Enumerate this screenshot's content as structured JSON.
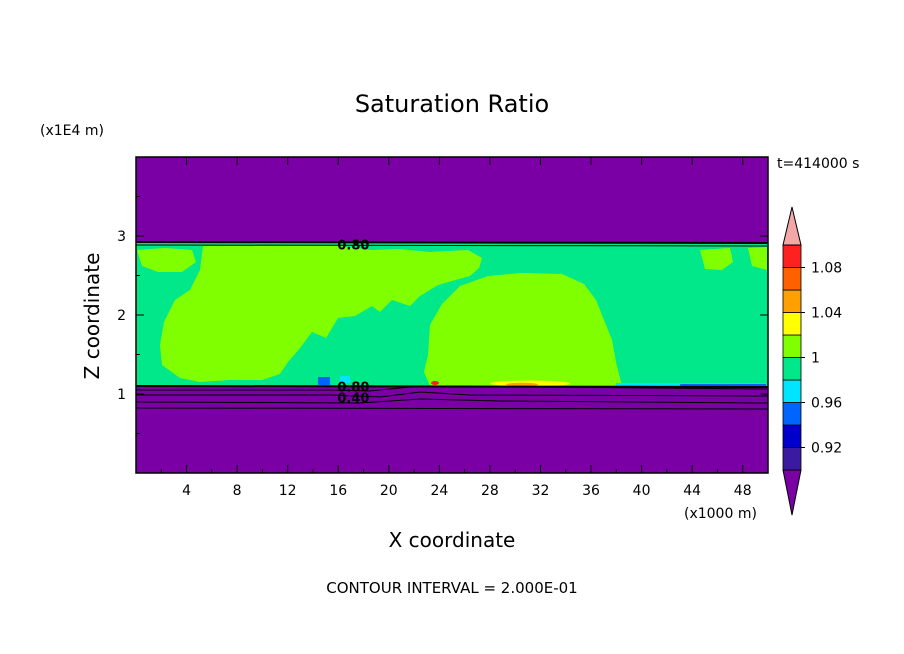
{
  "chart_data": {
    "type": "heatmap",
    "title": "Saturation Ratio",
    "xlabel": "X coordinate",
    "ylabel": "Z coordinate",
    "x_unit": "(x1000 m)",
    "y_unit": "(x1E4 m)",
    "time_label": "t=414000 s",
    "footer": "CONTOUR INTERVAL = 2.000E-01",
    "xlim": [
      0,
      50
    ],
    "ylim": [
      0,
      4
    ],
    "x_ticks": [
      4,
      8,
      12,
      16,
      20,
      24,
      28,
      32,
      36,
      40,
      44,
      48
    ],
    "y_ticks": [
      1,
      2,
      3
    ],
    "contour_labels": [
      {
        "text": "0.80",
        "x": 17.2,
        "z": 2.88
      },
      {
        "text": "0.80",
        "x": 17.2,
        "z": 1.08
      },
      {
        "text": "0.40",
        "x": 17.2,
        "z": 0.94
      }
    ],
    "colorbar": {
      "levels": [
        0.92,
        0.96,
        1,
        1.04,
        1.08
      ],
      "labels": [
        "0.92",
        "0.96",
        "1",
        "1.04",
        "1.08"
      ],
      "colors": [
        "#7a00a6",
        "#3a1aa0",
        "#0000c8",
        "#0064ff",
        "#00e5ff",
        "#00e88a",
        "#80ff00",
        "#ffff00",
        "#ffa000",
        "#ff6000",
        "#ff2020",
        "#f4a7a8"
      ]
    },
    "regions": {
      "dry": "#7a00a6",
      "near_saturated": "#00e88a",
      "supersaturated": "#80ff00"
    }
  }
}
